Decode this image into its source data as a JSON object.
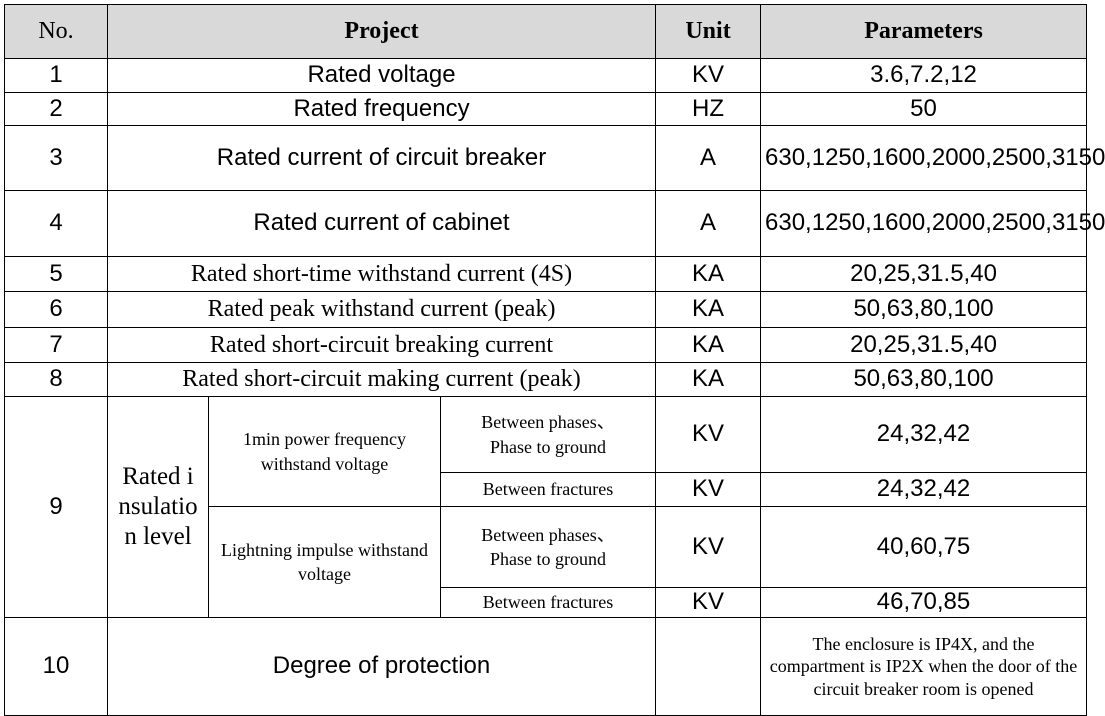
{
  "header": [
    "No.",
    "Project",
    "Unit",
    "Parameters"
  ],
  "rows": [
    [
      "1",
      "Rated voltage",
      "KV",
      "3.6,7.2,12"
    ],
    [
      "2",
      "Rated frequency",
      "HZ",
      "50"
    ],
    [
      "3",
      "Rated current of circuit breaker",
      "A",
      "630,1250,1600,2000,2500,3150"
    ],
    [
      "4",
      "Rated current of cabinet",
      "A",
      "630,1250,1600,2000,2500,3150"
    ],
    [
      "5",
      "Rated short-time withstand current (4S)",
      "KA",
      "20,25,31.5,40"
    ],
    [
      "6",
      "Rated peak withstand current (peak)",
      "KA",
      "50,63,80,100"
    ],
    [
      "7",
      "Rated short-circuit breaking current",
      "KA",
      "20,25,31.5,40"
    ],
    [
      "8",
      "Rated short-circuit making current (peak)",
      "KA",
      "50,63,80,100"
    ]
  ],
  "insulation": {
    "no": "9",
    "label": "Rated insulation level",
    "groups": [
      {
        "label": "1min power frequency withstand voltage",
        "items": [
          {
            "condition": [
              "Between phases、",
              "Phase to ground"
            ],
            "unit": "KV",
            "parameters": "24,32,42"
          },
          {
            "condition": [
              "Between fractures"
            ],
            "unit": "KV",
            "parameters": "24,32,42"
          }
        ]
      },
      {
        "label": "Lightning impulse withstand voltage",
        "items": [
          {
            "condition": [
              "Between phases、",
              "Phase to ground"
            ],
            "unit": "KV",
            "parameters": "40,60,75"
          },
          {
            "condition": [
              "Between fractures"
            ],
            "unit": "KV",
            "parameters": "46,70,85"
          }
        ]
      }
    ]
  },
  "protection": {
    "no": "10",
    "project": "Degree of protection",
    "unit": null,
    "parameters": "The enclosure is IP4X, and the compartment is IP2X when the door of the circuit breaker room is opened"
  }
}
